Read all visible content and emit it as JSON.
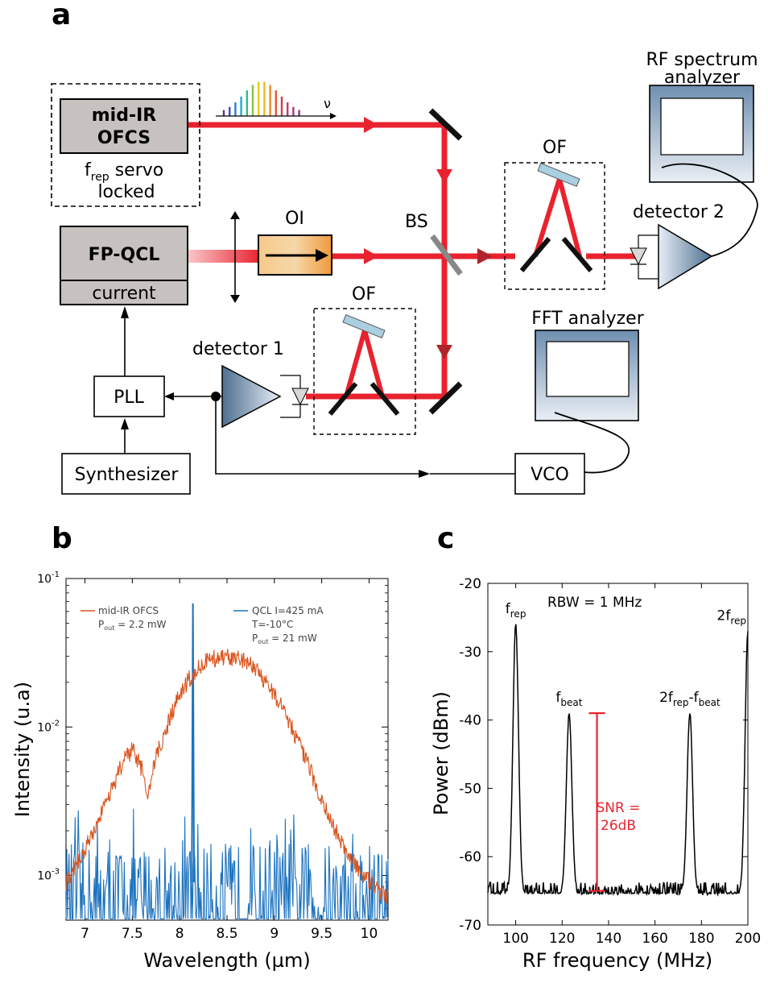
{
  "panels": {
    "a": "a",
    "b": "b",
    "c": "c"
  },
  "panel_a": {
    "ofcs_label_1": "mid-IR",
    "ofcs_label_2": "OFCS",
    "servo_f": "f",
    "servo_sub": "rep",
    "servo_text": " servo",
    "servo_locked": "locked",
    "nu": "ν",
    "fpqcl": "FP-QCL",
    "current": "current",
    "oi": "OI",
    "bs": "BS",
    "of_top": "OF",
    "of_bottom": "OF",
    "rf_analyzer_1": "RF spectrum",
    "rf_analyzer_2": "analyzer",
    "detector2": "detector 2",
    "fft_analyzer": "FFT analyzer",
    "detector1": "detector 1",
    "pll": "PLL",
    "synthesizer": "Synthesizer",
    "vco": "VCO",
    "colors": {
      "beam": "#e8232f",
      "beam_dark": "#b0232a",
      "box_fill": "#c7c1bf"
    }
  },
  "chart_data": [
    {
      "type": "line",
      "panel": "b",
      "xlabel": "Wavelength (µm)",
      "ylabel": "Intensity (u.a)",
      "y_scale": "log",
      "xlim": [
        6.8,
        10.2
      ],
      "ylim": [
        0.0005,
        0.1
      ],
      "x_ticks": [
        "7",
        "7.5",
        "8",
        "8.5",
        "9",
        "9.5",
        "10"
      ],
      "y_ticks": [
        {
          "base": "10",
          "exp": "-1"
        },
        {
          "base": "10",
          "exp": "-2"
        },
        {
          "base": "10",
          "exp": "-3"
        }
      ],
      "series": [
        {
          "name": "mid-IR OFCS",
          "legend_sub_label": "P",
          "legend_sub": "out",
          "legend_value": " = 2.2 mW",
          "color": "#d9541e",
          "x": [
            6.8,
            7.0,
            7.2,
            7.4,
            7.5,
            7.6,
            7.66,
            7.75,
            7.9,
            8.0,
            8.1,
            8.2,
            8.3,
            8.4,
            8.5,
            8.6,
            8.7,
            8.8,
            8.9,
            9.0,
            9.1,
            9.2,
            9.3,
            9.4,
            9.5,
            9.6,
            9.7,
            9.8,
            9.9,
            10.0,
            10.1,
            10.2
          ],
          "y": [
            0.0009,
            0.0015,
            0.0028,
            0.0058,
            0.007,
            0.0052,
            0.0033,
            0.0062,
            0.0115,
            0.0165,
            0.021,
            0.025,
            0.028,
            0.0295,
            0.0298,
            0.029,
            0.0275,
            0.025,
            0.0205,
            0.0165,
            0.013,
            0.0095,
            0.0067,
            0.0047,
            0.0032,
            0.0023,
            0.0017,
            0.0013,
            0.0011,
            0.0009,
            0.0008,
            0.0007
          ]
        },
        {
          "name": "QCL I=425 mA",
          "legend_line2": "T=-10°C",
          "legend_sub_label": "P",
          "legend_sub": "out",
          "legend_value": " = 21 mW",
          "color": "#1b72bf",
          "peak_x": 8.14,
          "peak_y": 0.068,
          "noise_floor": 0.0009
        }
      ]
    },
    {
      "type": "line",
      "panel": "c",
      "xlabel": "RF frequency (MHz)",
      "ylabel": "Power (dBm)",
      "xlim": [
        88,
        200
      ],
      "ylim": [
        -70,
        -20
      ],
      "x_ticks": [
        "100",
        "120",
        "140",
        "160",
        "180",
        "200"
      ],
      "y_ticks": [
        "-20",
        "-30",
        "-40",
        "-50",
        "-60",
        "-70"
      ],
      "rbw": "RBW = 1 MHz",
      "peaks": [
        {
          "x": 100,
          "y": -26,
          "label": "f",
          "sub": "rep"
        },
        {
          "x": 123,
          "y": -39,
          "label": "f",
          "sub": "beat"
        },
        {
          "x": 175,
          "y": -39,
          "label": "2f",
          "sub": "rep",
          "suffix": "-f",
          "sub2": "beat"
        },
        {
          "x": 200,
          "y": -27,
          "label": "2f",
          "sub": "rep"
        }
      ],
      "noise_floor": -65.5,
      "snr": {
        "x": 135,
        "top": -39,
        "bottom": -65,
        "label_1": "SNR =",
        "label_2": "26dB",
        "color": "#e8232f"
      },
      "series": [
        {
          "color": "#000000"
        }
      ]
    }
  ]
}
